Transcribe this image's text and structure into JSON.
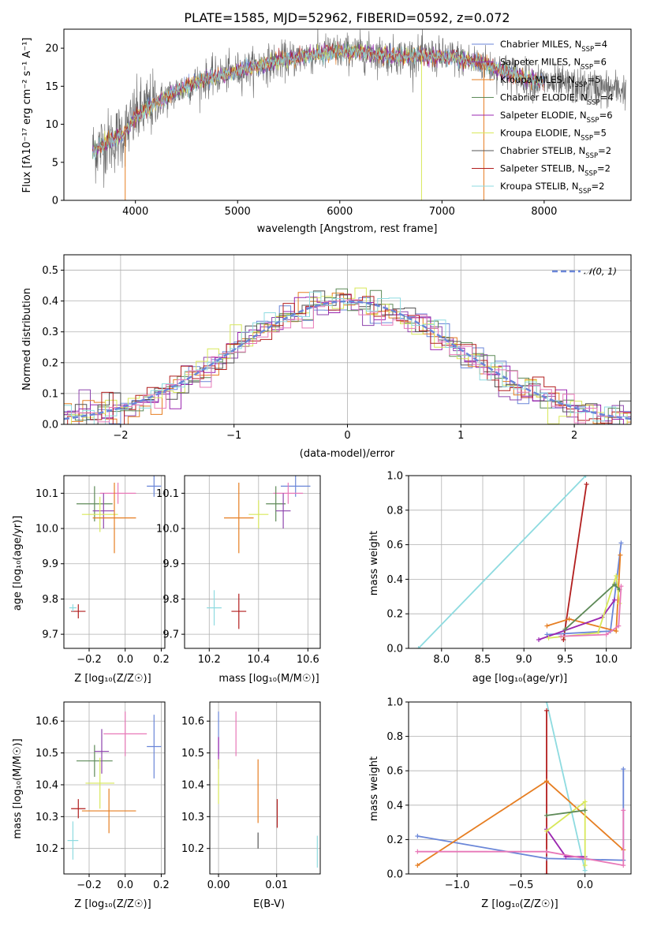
{
  "colors": [
    "#6a86d8",
    "#8e44ad",
    "#e67e22",
    "#5e8a58",
    "#9b27b0",
    "#d8e85a",
    "#555555",
    "#b21e1e",
    "#8edbe0",
    "#e878b8"
  ],
  "chart_data": [
    {
      "id": "spectrum",
      "type": "line",
      "title": "PLATE=1585, MJD=52962, FIBERID=0592, z=0.072",
      "xlabel": "wavelength [Angstrom, rest frame]",
      "ylabel": "Flux [fλ10⁻¹⁷ erg cm⁻² s⁻¹ A⁻¹]",
      "xlim": [
        3300,
        8850
      ],
      "ylim": [
        0,
        22.5
      ],
      "xticks": [
        "4000",
        "5000",
        "6000",
        "7000",
        "8000"
      ],
      "xtick_values": [
        4000,
        5000,
        6000,
        7000,
        8000
      ],
      "yticks": [
        "0",
        "5",
        "10",
        "15",
        "20"
      ],
      "ytick_values": [
        0,
        5,
        10,
        15,
        20
      ],
      "legend_position": "top-right",
      "series": [
        {
          "name": "Chabrier MILES, N_SSP=4",
          "color": "#6a86d8"
        },
        {
          "name": "Salpeter MILES, N_SSP=6",
          "color": "#8e44ad"
        },
        {
          "name": "Kroupa MILES, N_SSP=5",
          "color": "#e67e22"
        },
        {
          "name": "Chabrier ELODIE, N_SSP=4",
          "color": "#5e8a58"
        },
        {
          "name": "Salpeter ELODIE, N_SSP=6",
          "color": "#9b27b0"
        },
        {
          "name": "Kroupa ELODIE, N_SSP=5",
          "color": "#d8e85a"
        },
        {
          "name": "Chabrier STELIB, N_SSP=2",
          "color": "#555555"
        },
        {
          "name": "Salpeter STELIB, N_SSP=2",
          "color": "#b21e1e"
        },
        {
          "name": "Kroupa STELIB, N_SSP=2",
          "color": "#8edbe0"
        }
      ],
      "continuum": {
        "x": [
          3580,
          3700,
          3800,
          3900,
          4000,
          4100,
          4200,
          4300,
          4500,
          4700,
          5000,
          5300,
          5600,
          5900,
          6200,
          6500,
          6800,
          7100,
          7400,
          7700,
          8000,
          8300,
          8800
        ],
        "y": [
          6.5,
          7.5,
          8.0,
          9.0,
          11.0,
          12.0,
          12.8,
          13.5,
          15.0,
          16.0,
          17.0,
          18.0,
          18.8,
          19.5,
          19.5,
          19.0,
          19.0,
          18.8,
          18.0,
          16.5,
          15.5,
          15.0,
          14.5
        ]
      }
    },
    {
      "id": "residuals",
      "type": "line",
      "xlabel": "(data-model)/error",
      "ylabel": "Normed distribution",
      "xlim": [
        -2.5,
        2.5
      ],
      "ylim": [
        0,
        0.55
      ],
      "xticks": [
        "−2",
        "−1",
        "0",
        "1",
        "2"
      ],
      "xtick_values": [
        -2,
        -1,
        0,
        1,
        2
      ],
      "yticks": [
        "0.0",
        "0.1",
        "0.2",
        "0.3",
        "0.4",
        "0.5"
      ],
      "ytick_values": [
        0,
        0.1,
        0.2,
        0.3,
        0.4,
        0.5
      ],
      "legend": "𝒩(0, 1)",
      "legend_position": "top-right",
      "gaussian": {
        "mean": 0,
        "sigma": 1,
        "color": "#6a86d8"
      },
      "bin_width": 0.1
    },
    {
      "id": "age-vs-Z",
      "type": "scatter",
      "xlabel": "Z [log₁₀(Z/Z☉)]",
      "ylabel": "age  [log₁₀(age/yr)]",
      "xlim": [
        -0.34,
        0.22
      ],
      "ylim": [
        9.66,
        10.15
      ],
      "xticks": [
        "−0.2",
        "0.0",
        "0.2"
      ],
      "xtick_values": [
        -0.2,
        0,
        0.2
      ],
      "yticks": [
        "9.7",
        "9.8",
        "9.9",
        "10.0",
        "10.1"
      ],
      "ytick_values": [
        9.7,
        9.8,
        9.9,
        10.0,
        10.1
      ],
      "points": [
        {
          "x": 0.16,
          "y": 10.12,
          "xerr": 0.04,
          "yerr": 0.03,
          "color": "#6a86d8"
        },
        {
          "x": -0.04,
          "y": 10.1,
          "xerr": 0.1,
          "yerr": 0.03,
          "color": "#e878b8"
        },
        {
          "x": -0.17,
          "y": 10.07,
          "xerr": 0.1,
          "yerr": 0.05,
          "color": "#5e8a58"
        },
        {
          "x": -0.12,
          "y": 10.05,
          "xerr": 0.06,
          "yerr": 0.05,
          "color": "#8e44ad"
        },
        {
          "x": -0.14,
          "y": 10.04,
          "xerr": 0.1,
          "yerr": 0.05,
          "color": "#d8e85a"
        },
        {
          "x": -0.06,
          "y": 10.03,
          "xerr": 0.12,
          "yerr": 0.1,
          "color": "#e67e22"
        },
        {
          "x": -0.26,
          "y": 9.765,
          "xerr": 0.04,
          "yerr": 0.02,
          "color": "#b21e1e"
        },
        {
          "x": -0.29,
          "y": 9.775,
          "xerr": 0.02,
          "yerr": 0.01,
          "color": "#8edbe0"
        }
      ]
    },
    {
      "id": "age-vs-mass",
      "type": "scatter",
      "xlabel": "mass [log₁₀(M/M☉)]",
      "xlim": [
        10.1,
        10.65
      ],
      "ylim": [
        9.66,
        10.15
      ],
      "xticks": [
        "10.2",
        "10.4",
        "10.6"
      ],
      "xtick_values": [
        10.2,
        10.4,
        10.6
      ],
      "yticks": [
        "9.7",
        "9.8",
        "9.9",
        "10.0",
        "10.1"
      ],
      "ytick_values": [
        9.7,
        9.8,
        9.9,
        10.0,
        10.1
      ],
      "points": [
        {
          "x": 10.55,
          "y": 10.12,
          "xerr": 0.06,
          "yerr": 0.03,
          "color": "#6a86d8"
        },
        {
          "x": 10.52,
          "y": 10.1,
          "xerr": 0.06,
          "yerr": 0.03,
          "color": "#e878b8"
        },
        {
          "x": 10.47,
          "y": 10.07,
          "xerr": 0.04,
          "yerr": 0.05,
          "color": "#5e8a58"
        },
        {
          "x": 10.5,
          "y": 10.05,
          "xerr": 0.03,
          "yerr": 0.05,
          "color": "#8e44ad"
        },
        {
          "x": 10.4,
          "y": 10.04,
          "xerr": 0.04,
          "yerr": 0.04,
          "color": "#d8e85a"
        },
        {
          "x": 10.32,
          "y": 10.03,
          "xerr": 0.06,
          "yerr": 0.1,
          "color": "#e67e22"
        },
        {
          "x": 10.32,
          "y": 9.765,
          "xerr": 0.03,
          "yerr": 0.05,
          "color": "#b21e1e"
        },
        {
          "x": 10.22,
          "y": 9.775,
          "xerr": 0.03,
          "yerr": 0.05,
          "color": "#8edbe0"
        }
      ]
    },
    {
      "id": "massweight-vs-age",
      "type": "line",
      "xlabel": "age  [log₁₀(age/yr)]",
      "ylabel": "mass weight",
      "xlim": [
        7.6,
        10.3
      ],
      "ylim": [
        0,
        1.0
      ],
      "xticks": [
        "8.0",
        "8.5",
        "9.0",
        "9.5",
        "10.0"
      ],
      "xtick_values": [
        8.0,
        8.5,
        9.0,
        9.5,
        10.0
      ],
      "yticks": [
        "0.0",
        "0.2",
        "0.4",
        "0.6",
        "0.8",
        "1.0"
      ],
      "ytick_values": [
        0,
        0.2,
        0.4,
        0.6,
        0.8,
        1.0
      ],
      "series": [
        {
          "color": "#8edbe0",
          "x": [
            7.72,
            9.75
          ],
          "y": [
            0.0,
            1.0
          ]
        },
        {
          "color": "#b21e1e",
          "x": [
            9.48,
            9.76
          ],
          "y": [
            0.05,
            0.95
          ]
        },
        {
          "color": "#6a86d8",
          "x": [
            9.28,
            10.05,
            10.18
          ],
          "y": [
            0.08,
            0.1,
            0.61
          ]
        },
        {
          "color": "#e67e22",
          "x": [
            9.28,
            9.55,
            10.12,
            10.17
          ],
          "y": [
            0.13,
            0.17,
            0.1,
            0.54
          ]
        },
        {
          "color": "#9b27b0",
          "x": [
            9.18,
            9.95,
            10.1
          ],
          "y": [
            0.05,
            0.18,
            0.28
          ]
        },
        {
          "color": "#d8e85a",
          "x": [
            9.3,
            9.9,
            10.12,
            10.16
          ],
          "y": [
            0.06,
            0.09,
            0.42,
            0.26
          ]
        },
        {
          "color": "#5e8a58",
          "x": [
            9.5,
            10.1,
            10.16
          ],
          "y": [
            0.11,
            0.37,
            0.34
          ]
        },
        {
          "color": "#e878b8",
          "x": [
            9.45,
            10.0,
            10.15,
            10.18
          ],
          "y": [
            0.07,
            0.08,
            0.13,
            0.36
          ]
        }
      ]
    },
    {
      "id": "mass-vs-Z",
      "type": "scatter",
      "xlabel": "Z [log₁₀(Z/Z☉)]",
      "ylabel": "mass [log₁₀(M/M☉)]",
      "xlim": [
        -0.34,
        0.22
      ],
      "ylim": [
        10.12,
        10.66
      ],
      "xticks": [
        "−0.2",
        "0.0",
        "0.2"
      ],
      "xtick_values": [
        -0.2,
        0,
        0.2
      ],
      "yticks": [
        "10.2",
        "10.3",
        "10.4",
        "10.5",
        "10.6"
      ],
      "ytick_values": [
        10.2,
        10.3,
        10.4,
        10.5,
        10.6
      ],
      "points": [
        {
          "x": 0.16,
          "y": 10.52,
          "xerr": 0.04,
          "yerr": 0.1,
          "color": "#6a86d8"
        },
        {
          "x": 0.0,
          "y": 10.56,
          "xerr": 0.12,
          "yerr": 0.07,
          "color": "#e878b8"
        },
        {
          "x": -0.17,
          "y": 10.475,
          "xerr": 0.1,
          "yerr": 0.05,
          "color": "#5e8a58"
        },
        {
          "x": -0.13,
          "y": 10.505,
          "xerr": 0.04,
          "yerr": 0.07,
          "color": "#8e44ad"
        },
        {
          "x": -0.14,
          "y": 10.405,
          "xerr": 0.08,
          "yerr": 0.08,
          "color": "#d8e85a"
        },
        {
          "x": -0.09,
          "y": 10.318,
          "xerr": 0.15,
          "yerr": 0.07,
          "color": "#e67e22"
        },
        {
          "x": -0.26,
          "y": 10.325,
          "xerr": 0.04,
          "yerr": 0.03,
          "color": "#b21e1e"
        },
        {
          "x": -0.29,
          "y": 10.225,
          "xerr": 0.03,
          "yerr": 0.06,
          "color": "#8edbe0"
        }
      ]
    },
    {
      "id": "mass-vs-EBV",
      "type": "scatter",
      "xlabel": "E(B-V)",
      "xlim": [
        -0.0015,
        0.0175
      ],
      "ylim": [
        10.12,
        10.66
      ],
      "xticks": [
        "0.00",
        "0.01"
      ],
      "xtick_values": [
        0,
        0.01
      ],
      "yticks": [
        "10.2",
        "10.3",
        "10.4",
        "10.5",
        "10.6"
      ],
      "ytick_values": [
        10.2,
        10.3,
        10.4,
        10.5,
        10.6
      ],
      "points": [
        {
          "x": 0.0,
          "y": 10.56,
          "xerr": 0,
          "yerr": 0.07,
          "color": "#6a86d8"
        },
        {
          "x": 0.0,
          "y": 10.5,
          "xerr": 0,
          "yerr": 0.05,
          "color": "#9b27b0"
        },
        {
          "x": 0.0,
          "y": 10.41,
          "xerr": 0,
          "yerr": 0.07,
          "color": "#d8e85a"
        },
        {
          "x": 0.003,
          "y": 10.56,
          "xerr": 0,
          "yerr": 0.07,
          "color": "#e878b8"
        },
        {
          "x": 0.0068,
          "y": 10.38,
          "xerr": 0,
          "yerr": 0.1,
          "color": "#e67e22"
        },
        {
          "x": 0.0068,
          "y": 10.225,
          "xerr": 0,
          "yerr": 0.025,
          "color": "#555555"
        },
        {
          "x": 0.0101,
          "y": 10.31,
          "xerr": 0,
          "yerr": 0.045,
          "color": "#b21e1e"
        },
        {
          "x": 0.017,
          "y": 10.19,
          "xerr": 0,
          "yerr": 0.05,
          "color": "#8edbe0"
        }
      ]
    },
    {
      "id": "massweight-vs-Z",
      "type": "line",
      "xlabel": "Z [log₁₀(Z/Z☉)]",
      "ylabel": "mass weight",
      "xlim": [
        -1.38,
        0.36
      ],
      "ylim": [
        0,
        1.0
      ],
      "xticks": [
        "−1.0",
        "−0.5",
        "0.0"
      ],
      "xtick_values": [
        -1.0,
        -0.5,
        0
      ],
      "yticks": [
        "0.0",
        "0.2",
        "0.4",
        "0.6",
        "0.8",
        "1.0"
      ],
      "ytick_values": [
        0,
        0.2,
        0.4,
        0.6,
        0.8,
        1.0
      ],
      "series": [
        {
          "color": "#8edbe0",
          "x": [
            -0.3,
            0.0
          ],
          "y": [
            1.0,
            0.02
          ]
        },
        {
          "color": "#b21e1e",
          "x": [
            -0.3,
            -0.3
          ],
          "y": [
            0.95,
            0.0
          ]
        },
        {
          "color": "#6a86d8",
          "x": [
            -1.31,
            -0.3,
            0.3,
            0.3
          ],
          "y": [
            0.22,
            0.09,
            0.08,
            0.61
          ]
        },
        {
          "color": "#e67e22",
          "x": [
            -1.31,
            -0.3,
            0.3
          ],
          "y": [
            0.05,
            0.54,
            0.14
          ]
        },
        {
          "color": "#9b27b0",
          "x": [
            -0.3,
            -0.15,
            0.0
          ],
          "y": [
            0.26,
            0.1,
            0.1
          ]
        },
        {
          "color": "#d8e85a",
          "x": [
            -0.3,
            0.0,
            0.0
          ],
          "y": [
            0.25,
            0.42,
            0.05
          ]
        },
        {
          "color": "#5e8a58",
          "x": [
            -0.3,
            0.0
          ],
          "y": [
            0.34,
            0.37
          ]
        },
        {
          "color": "#e878b8",
          "x": [
            -1.31,
            -0.3,
            0.3,
            0.3
          ],
          "y": [
            0.13,
            0.13,
            0.05,
            0.37
          ]
        }
      ]
    }
  ]
}
